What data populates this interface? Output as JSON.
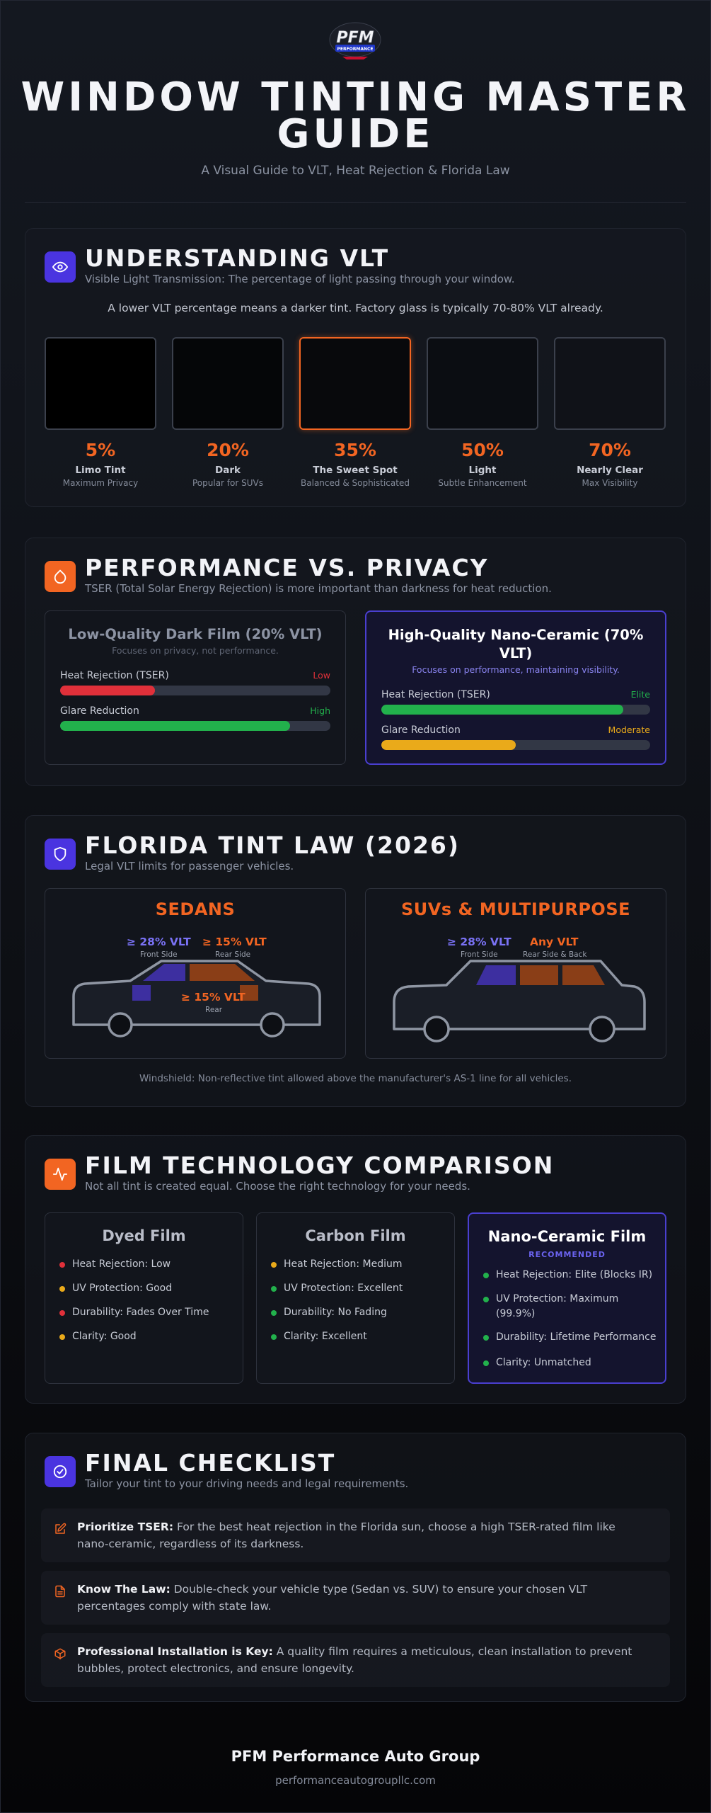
{
  "header": {
    "logo_text": "PFM",
    "logo_sub": "PERFORMANCE",
    "title": "WINDOW TINTING MASTER GUIDE",
    "subtitle": "A Visual Guide to VLT, Heat Rejection & Florida Law"
  },
  "vlt": {
    "title": "UNDERSTANDING VLT",
    "subtitle": "Visible Light Transmission: The percentage of light passing through your window.",
    "note": "A lower VLT percentage means a darker tint. Factory glass is typically 70-80% VLT already.",
    "levels": [
      {
        "pct": "5%",
        "name": "Limo Tint",
        "desc": "Maximum Privacy",
        "color": "#000000"
      },
      {
        "pct": "20%",
        "name": "Dark",
        "desc": "Popular for SUVs",
        "color": "#050608"
      },
      {
        "pct": "35%",
        "name": "The Sweet Spot",
        "desc": "Balanced & Sophisticated",
        "color": "#08090c"
      },
      {
        "pct": "50%",
        "name": "Light",
        "desc": "Subtle Enhancement",
        "color": "#0b0d12"
      },
      {
        "pct": "70%",
        "name": "Nearly Clear",
        "desc": "Max Visibility",
        "color": "#101218"
      }
    ]
  },
  "performance": {
    "title": "PERFORMANCE VS. PRIVACY",
    "subtitle": "TSER (Total Solar Energy Rejection) is more important than darkness for heat reduction.",
    "low": {
      "title": "Low-Quality Dark Film (20% VLT)",
      "note": "Focuses on privacy, not performance.",
      "bars": [
        {
          "label": "Heat Rejection (TSER)",
          "rating": "Low",
          "value": 0.35,
          "color": "#e0303a",
          "rating_color": "#e0303a"
        },
        {
          "label": "Glare Reduction",
          "rating": "High",
          "value": 0.85,
          "color": "#22b14c",
          "rating_color": "#22b14c"
        }
      ]
    },
    "high": {
      "title": "High-Quality Nano-Ceramic (70% VLT)",
      "note": "Focuses on performance, maintaining visibility.",
      "bars": [
        {
          "label": "Heat Rejection (TSER)",
          "rating": "Elite",
          "value": 0.9,
          "color": "#22b14c",
          "rating_color": "#22b14c"
        },
        {
          "label": "Glare Reduction",
          "rating": "Moderate",
          "value": 0.5,
          "color": "#eaaa1a",
          "rating_color": "#eaaa1a"
        }
      ]
    }
  },
  "law": {
    "title": "FLORIDA TINT LAW (2026)",
    "subtitle": "Legal VLT limits for passenger vehicles.",
    "sedan": {
      "title": "SEDANS",
      "front_value": "≥ 28% VLT",
      "front_label": "Front Side",
      "rear_side_value": "≥ 15% VLT",
      "rear_side_label": "Rear Side",
      "rear_value": "≥ 15% VLT",
      "rear_label": "Rear"
    },
    "suv": {
      "title": "SUVs & MULTIPURPOSE",
      "front_value": "≥ 28% VLT",
      "front_label": "Front Side",
      "rear_value": "Any VLT",
      "rear_label": "Rear Side & Back"
    },
    "windshield_note": "Windshield: Non-reflective tint allowed above the manufacturer's AS-1 line for all vehicles."
  },
  "films": {
    "title": "FILM TECHNOLOGY COMPARISON",
    "subtitle": "Not all tint is created equal. Choose the right technology for your needs.",
    "cards": [
      {
        "title": "Dyed Film",
        "badge": "",
        "items": [
          {
            "text": "Heat Rejection: Low",
            "color": "#e0303a"
          },
          {
            "text": "UV Protection: Good",
            "color": "#eaaa1a"
          },
          {
            "text": "Durability: Fades Over Time",
            "color": "#e0303a"
          },
          {
            "text": "Clarity: Good",
            "color": "#eaaa1a"
          }
        ]
      },
      {
        "title": "Carbon Film",
        "badge": "",
        "items": [
          {
            "text": "Heat Rejection: Medium",
            "color": "#eaaa1a"
          },
          {
            "text": "UV Protection: Excellent",
            "color": "#22b14c"
          },
          {
            "text": "Durability: No Fading",
            "color": "#22b14c"
          },
          {
            "text": "Clarity: Excellent",
            "color": "#22b14c"
          }
        ]
      },
      {
        "title": "Nano-Ceramic Film",
        "badge": "RECOMMENDED",
        "items": [
          {
            "text": "Heat Rejection: Elite (Blocks IR)",
            "color": "#22b14c"
          },
          {
            "text": "UV Protection: Maximum (99.9%)",
            "color": "#22b14c"
          },
          {
            "text": "Durability: Lifetime Performance",
            "color": "#22b14c"
          },
          {
            "text": "Clarity: Unmatched",
            "color": "#22b14c"
          }
        ]
      }
    ]
  },
  "checklist": {
    "title": "FINAL CHECKLIST",
    "subtitle": "Tailor your tint to your driving needs and legal requirements.",
    "items": [
      {
        "icon": "edit-icon",
        "bold": "Prioritize TSER:",
        "text": " For the best heat rejection in the Florida sun, choose a high TSER-rated film like nano-ceramic, regardless of its darkness."
      },
      {
        "icon": "document-icon",
        "bold": "Know The Law:",
        "text": " Double-check your vehicle type (Sedan vs. SUV) to ensure your chosen VLT percentages comply with state law."
      },
      {
        "icon": "cube-icon",
        "bold": "Professional Installation is Key:",
        "text": " A quality film requires a meticulous, clean installation to prevent bubbles, protect electronics, and ensure longevity."
      }
    ]
  },
  "footer": {
    "name": "PFM Performance Auto Group",
    "url": "performanceautogroupllc.com"
  }
}
